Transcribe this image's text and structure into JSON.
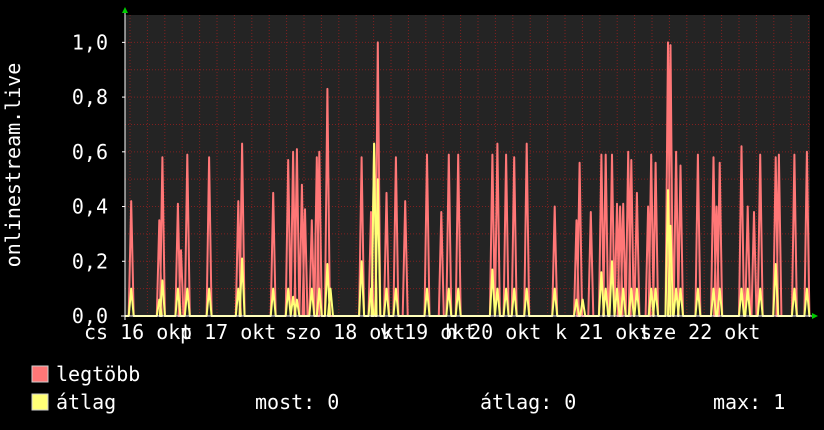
{
  "chart_data": {
    "type": "line",
    "ylabel": "onlinestream.live",
    "ylim": [
      0,
      1.1
    ],
    "y_ticks": [
      "0,0",
      "0,2",
      "0,4",
      "0,6",
      "0,8",
      "1,0"
    ],
    "y_tick_values": [
      0,
      0.2,
      0.4,
      0.6,
      0.8,
      1.0
    ],
    "x_ticks": [
      "cs 16 okt",
      "p 17 okt",
      "szo 18 okt",
      "v 19 okt",
      "h 20 okt",
      "k 21 okt",
      "sze 22 okt"
    ],
    "grid": true,
    "colors": {
      "background": "#000000",
      "plot_bg": "#242424",
      "grid": "#8b2020",
      "axis": "#ffffff",
      "text": "#ffffff",
      "max_series": "#ff7777",
      "avg_series": "#ffff77",
      "arrow": "#00cc00"
    },
    "series": [
      {
        "name": "legtöbb",
        "color": "#ff7777",
        "spikes": [
          [
            0.01,
            0.42
          ],
          [
            0.055,
            0.35
          ],
          [
            0.06,
            0.58
          ],
          [
            0.085,
            0.41
          ],
          [
            0.09,
            0.24
          ],
          [
            0.1,
            0.59
          ],
          [
            0.135,
            0.58
          ],
          [
            0.182,
            0.42
          ],
          [
            0.188,
            0.63
          ],
          [
            0.238,
            0.45
          ],
          [
            0.262,
            0.57
          ],
          [
            0.27,
            0.6
          ],
          [
            0.276,
            0.61
          ],
          [
            0.284,
            0.48
          ],
          [
            0.289,
            0.39
          ],
          [
            0.3,
            0.35
          ],
          [
            0.308,
            0.58
          ],
          [
            0.312,
            0.6
          ],
          [
            0.325,
            0.83
          ],
          [
            0.38,
            0.58
          ],
          [
            0.395,
            0.38
          ],
          [
            0.4,
            0.63
          ],
          [
            0.406,
            1.0
          ],
          [
            0.42,
            0.45
          ],
          [
            0.435,
            0.58
          ],
          [
            0.45,
            0.42
          ],
          [
            0.485,
            0.59
          ],
          [
            0.508,
            0.38
          ],
          [
            0.52,
            0.59
          ],
          [
            0.535,
            0.59
          ],
          [
            0.59,
            0.59
          ],
          [
            0.598,
            0.63
          ],
          [
            0.612,
            0.59
          ],
          [
            0.625,
            0.58
          ],
          [
            0.645,
            0.63
          ],
          [
            0.69,
            0.4
          ],
          [
            0.725,
            0.35
          ],
          [
            0.73,
            0.56
          ],
          [
            0.748,
            0.38
          ],
          [
            0.765,
            0.59
          ],
          [
            0.772,
            0.59
          ],
          [
            0.782,
            0.59
          ],
          [
            0.79,
            0.41
          ],
          [
            0.795,
            0.4
          ],
          [
            0.8,
            0.41
          ],
          [
            0.808,
            0.6
          ],
          [
            0.813,
            0.57
          ],
          [
            0.822,
            0.45
          ],
          [
            0.84,
            0.4
          ],
          [
            0.845,
            0.59
          ],
          [
            0.852,
            0.56
          ],
          [
            0.872,
            1.0
          ],
          [
            0.876,
            0.99
          ],
          [
            0.885,
            0.6
          ],
          [
            0.892,
            0.55
          ],
          [
            0.92,
            0.59
          ],
          [
            0.945,
            0.58
          ],
          [
            0.95,
            0.4
          ],
          [
            0.955,
            0.56
          ],
          [
            0.99,
            0.62
          ],
          [
            1.0,
            0.4
          ],
          [
            1.01,
            0.38
          ],
          [
            1.02,
            0.59
          ],
          [
            1.045,
            0.58
          ],
          [
            1.05,
            0.59
          ],
          [
            1.075,
            0.59
          ],
          [
            1.095,
            0.6
          ]
        ]
      },
      {
        "name": "átlag",
        "color": "#ffff77",
        "spikes": [
          [
            0.01,
            0.1
          ],
          [
            0.055,
            0.06
          ],
          [
            0.06,
            0.13
          ],
          [
            0.085,
            0.1
          ],
          [
            0.1,
            0.1
          ],
          [
            0.135,
            0.1
          ],
          [
            0.182,
            0.1
          ],
          [
            0.188,
            0.21
          ],
          [
            0.238,
            0.1
          ],
          [
            0.262,
            0.1
          ],
          [
            0.27,
            0.07
          ],
          [
            0.276,
            0.06
          ],
          [
            0.3,
            0.1
          ],
          [
            0.312,
            0.1
          ],
          [
            0.325,
            0.19
          ],
          [
            0.33,
            0.1
          ],
          [
            0.38,
            0.2
          ],
          [
            0.395,
            0.1
          ],
          [
            0.4,
            0.63
          ],
          [
            0.406,
            0.5
          ],
          [
            0.42,
            0.1
          ],
          [
            0.435,
            0.1
          ],
          [
            0.485,
            0.1
          ],
          [
            0.52,
            0.1
          ],
          [
            0.535,
            0.1
          ],
          [
            0.59,
            0.17
          ],
          [
            0.598,
            0.1
          ],
          [
            0.612,
            0.1
          ],
          [
            0.625,
            0.1
          ],
          [
            0.645,
            0.1
          ],
          [
            0.69,
            0.1
          ],
          [
            0.725,
            0.06
          ],
          [
            0.735,
            0.06
          ],
          [
            0.765,
            0.16
          ],
          [
            0.772,
            0.1
          ],
          [
            0.782,
            0.2
          ],
          [
            0.79,
            0.1
          ],
          [
            0.8,
            0.1
          ],
          [
            0.813,
            0.1
          ],
          [
            0.822,
            0.1
          ],
          [
            0.845,
            0.1
          ],
          [
            0.852,
            0.1
          ],
          [
            0.872,
            0.46
          ],
          [
            0.876,
            0.33
          ],
          [
            0.885,
            0.1
          ],
          [
            0.892,
            0.1
          ],
          [
            0.92,
            0.1
          ],
          [
            0.945,
            0.1
          ],
          [
            0.955,
            0.1
          ],
          [
            0.99,
            0.1
          ],
          [
            1.0,
            0.1
          ],
          [
            1.02,
            0.1
          ],
          [
            1.045,
            0.19
          ],
          [
            1.075,
            0.1
          ],
          [
            1.095,
            0.1
          ]
        ]
      }
    ]
  },
  "legend": [
    {
      "label": "legtöbb",
      "color": "#ff7777"
    },
    {
      "label": "átlag",
      "color": "#ffff77"
    }
  ],
  "stats": {
    "current": "most: 0",
    "average": "átlag: 0",
    "max": "max: 1"
  }
}
